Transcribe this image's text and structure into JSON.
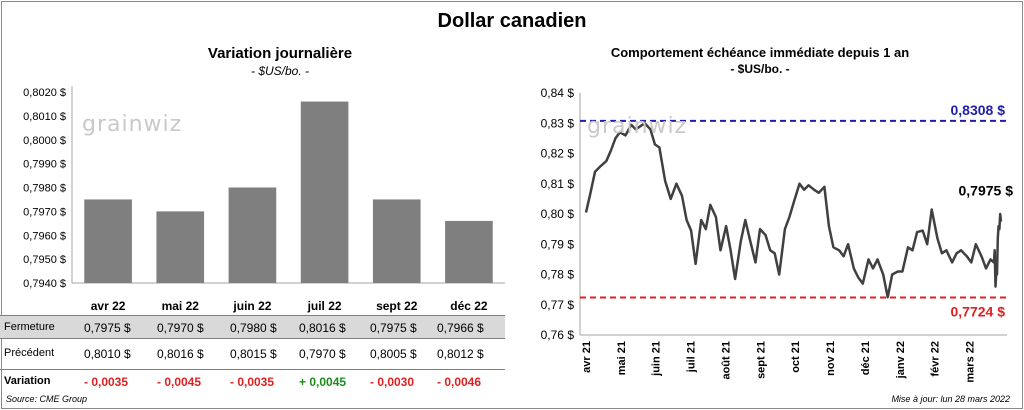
{
  "main_title": "Dollar canadien",
  "watermark": "grainwiz",
  "source": "Source: CME Group",
  "updated": "Mise à jour: lun 28 mars 2022",
  "chart_data": [
    {
      "type": "bar",
      "title": "Variation  journalière",
      "subtitle": "- $US/bo. -",
      "categories": [
        "avr 22",
        "mai 22",
        "juin 22",
        "juil 22",
        "sept 22",
        "déc 22"
      ],
      "values": [
        0.7975,
        0.797,
        0.798,
        0.8016,
        0.7975,
        0.7966
      ],
      "ylim": [
        0.794,
        0.802
      ],
      "yticks": [
        "0,8020 $",
        "0,8010 $",
        "0,8000 $",
        "0,7990 $",
        "0,7980 $",
        "0,7970 $",
        "0,7960 $",
        "0,7950 $",
        "0,7940 $"
      ],
      "bar_color": "#7f7f7f",
      "grid": false
    },
    {
      "type": "line",
      "title": "Comportement échéance immédiate depuis 1 an",
      "subtitle": "- $US/bo. -",
      "ylim": [
        0.76,
        0.84
      ],
      "yticks": [
        "0,84 $",
        "0,83 $",
        "0,82 $",
        "0,81 $",
        "0,80 $",
        "0,79 $",
        "0,78 $",
        "0,77 $",
        "0,76 $"
      ],
      "xticks": [
        "avr 21",
        "mai 21",
        "juin 21",
        "juil 21",
        "août 21",
        "sept 21",
        "oct 21",
        "nov 21",
        "déc 21",
        "janv 22",
        "févr 22",
        "mars 22"
      ],
      "x": [
        0,
        4,
        8,
        12,
        18,
        22,
        26,
        30,
        35,
        40,
        44,
        48,
        52,
        57,
        61,
        65,
        70,
        75,
        80,
        85,
        89,
        93,
        97,
        102,
        106,
        110,
        115,
        119,
        124,
        128,
        132,
        137,
        141,
        146,
        150,
        154,
        159,
        163,
        167,
        171,
        176,
        180,
        184,
        189,
        193,
        197,
        202,
        206,
        211,
        215,
        219,
        224,
        228,
        232,
        237,
        241,
        245,
        250,
        254,
        258,
        263,
        267,
        271,
        276,
        280,
        285,
        289,
        293,
        298,
        302,
        306,
        311,
        315,
        319,
        324,
        328,
        332,
        337,
        341,
        345,
        350,
        354,
        358,
        361
      ],
      "values": [
        0.8005,
        0.807,
        0.814,
        0.8155,
        0.8175,
        0.821,
        0.825,
        0.827,
        0.826,
        0.8295,
        0.828,
        0.829,
        0.83,
        0.828,
        0.823,
        0.822,
        0.811,
        0.805,
        0.81,
        0.806,
        0.798,
        0.7945,
        0.7835,
        0.798,
        0.795,
        0.803,
        0.799,
        0.788,
        0.796,
        0.788,
        0.7785,
        0.791,
        0.798,
        0.79,
        0.784,
        0.795,
        0.793,
        0.788,
        0.787,
        0.78,
        0.795,
        0.799,
        0.804,
        0.81,
        0.808,
        0.8095,
        0.808,
        0.807,
        0.809,
        0.796,
        0.789,
        0.788,
        0.786,
        0.79,
        0.782,
        0.779,
        0.777,
        0.785,
        0.782,
        0.785,
        0.78,
        0.7725,
        0.78,
        0.781,
        0.781,
        0.789,
        0.788,
        0.794,
        0.7945,
        0.79,
        0.8015,
        0.792,
        0.787,
        0.788,
        0.784,
        0.787,
        0.788,
        0.786,
        0.784,
        0.79,
        0.786,
        0.782,
        0.785,
        0.784
      ],
      "tail": [
        0.788,
        0.776,
        0.781,
        0.78,
        0.792,
        0.796,
        0.795,
        0.8,
        0.7975
      ],
      "line_color": "#404040",
      "high_line": {
        "value": 0.8308,
        "label": "0,8308 $",
        "color": "#1f1fa8"
      },
      "low_line": {
        "value": 0.7724,
        "label": "0,7724 $",
        "color": "#e02020"
      },
      "last_label": "0,7975 $",
      "grid": false
    }
  ],
  "table": {
    "rows": [
      {
        "label": "Fermeture",
        "cells": [
          "0,7975  $",
          "0,7970  $",
          "0,7980  $",
          "0,8016  $",
          "0,7975  $",
          "0,7966  $"
        ]
      },
      {
        "label": "Précédent",
        "cells": [
          "0,8010  $",
          "0,8016  $",
          "0,8015  $",
          "0,7970  $",
          "0,8005  $",
          "0,8012  $"
        ]
      },
      {
        "label": "Variation",
        "cells": [
          "- 0,0035",
          "- 0,0045",
          "- 0,0035",
          "+ 0,0045",
          "- 0,0030",
          "- 0,0046"
        ],
        "signs": [
          "neg",
          "neg",
          "neg",
          "pos",
          "neg",
          "neg"
        ]
      }
    ]
  }
}
